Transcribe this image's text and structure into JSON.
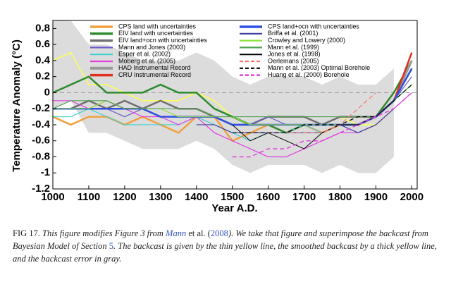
{
  "chart_data": {
    "type": "line",
    "xlabel": "Year A.D.",
    "ylabel": "Temperature Anomaly (°C)",
    "x": [
      1000,
      1050,
      1100,
      1150,
      1200,
      1250,
      1300,
      1350,
      1400,
      1450,
      1500,
      1550,
      1600,
      1650,
      1700,
      1750,
      1800,
      1850,
      1900,
      1950,
      2000
    ],
    "xlim": [
      1000,
      2015
    ],
    "xticks": [
      1000,
      1100,
      1200,
      1300,
      1400,
      1500,
      1600,
      1700,
      1800,
      1900,
      2000
    ],
    "ylim": [
      -1.2,
      0.9
    ],
    "yticks": [
      0.8,
      0.6,
      0.4,
      0.2,
      0,
      -0.2,
      -0.4,
      -0.6,
      -0.8,
      -1,
      -1.2
    ],
    "zero_line": true,
    "band": {
      "color": "#dcdcdc",
      "upper": [
        0.9,
        0.9,
        0.6,
        0.6,
        0.5,
        0.4,
        0.4,
        0.4,
        0.5,
        0.4,
        0.2,
        0.1,
        0.2,
        0.2,
        0.2,
        0.1,
        0.2,
        0.1,
        0.1,
        0.3,
        null
      ],
      "lower": [
        -0.2,
        -0.1,
        -0.5,
        -0.5,
        -0.6,
        -0.7,
        -0.7,
        -0.7,
        -0.6,
        -0.7,
        -0.9,
        -1.0,
        -0.9,
        -0.9,
        -0.9,
        -1.0,
        -0.9,
        -1.0,
        -1.0,
        -0.8,
        null
      ]
    },
    "series": [
      {
        "color": "#ffff55",
        "width": 1.5,
        "values": [
          0.4,
          0.5,
          0.1,
          0.1,
          0.0,
          -0.1,
          -0.1,
          -0.1,
          0.0,
          -0.1,
          -0.3,
          -0.4,
          -0.3,
          -0.3,
          -0.3,
          -0.4,
          -0.3,
          -0.4,
          -0.4,
          -0.2,
          null
        ]
      },
      {
        "name": "CPS land with uncertainties",
        "color": "#f0a040",
        "width": 2.5,
        "values": [
          -0.3,
          -0.4,
          -0.3,
          -0.3,
          -0.4,
          -0.3,
          -0.4,
          -0.5,
          -0.3,
          -0.3,
          -0.6,
          -0.5,
          -0.4,
          -0.5,
          -0.4,
          -0.5,
          -0.4,
          -0.4,
          -0.3,
          0.0,
          0.4
        ]
      },
      {
        "name": "EIV land with uncertainties",
        "color": "#2e8b2e",
        "width": 2.5,
        "values": [
          0.0,
          0.1,
          0.2,
          0.0,
          0.0,
          0.0,
          0.1,
          0.0,
          0.0,
          -0.2,
          -0.3,
          -0.4,
          -0.4,
          -0.5,
          -0.4,
          -0.4,
          -0.4,
          -0.4,
          -0.3,
          0.0,
          0.4
        ]
      },
      {
        "name": "EIV land+ocn with uncertainties",
        "color": "#707070",
        "width": 2.5,
        "values": [
          -0.2,
          -0.2,
          -0.1,
          -0.2,
          -0.1,
          -0.2,
          -0.1,
          -0.2,
          -0.2,
          -0.3,
          -0.4,
          -0.4,
          -0.3,
          -0.3,
          -0.3,
          -0.4,
          -0.3,
          -0.3,
          -0.3,
          -0.1,
          0.3
        ]
      },
      {
        "name": "Mann and Jones (2003)",
        "color": "#6a5acd",
        "width": 1.2,
        "values": [
          -0.2,
          -0.2,
          -0.2,
          -0.2,
          -0.3,
          -0.2,
          -0.3,
          -0.3,
          -0.3,
          -0.3,
          -0.4,
          -0.4,
          -0.3,
          -0.4,
          -0.4,
          -0.4,
          -0.4,
          -0.4,
          -0.3,
          -0.1,
          0.2
        ]
      },
      {
        "name": "Esper et al. (2002)",
        "color": "#40d0d0",
        "width": 1.2,
        "values": [
          -0.3,
          -0.3,
          -0.2,
          -0.3,
          -0.4,
          -0.4,
          -0.4,
          -0.4,
          -0.3,
          -0.4,
          -0.5,
          -0.6,
          -0.5,
          -0.5,
          -0.4,
          -0.5,
          -0.4,
          -0.4,
          -0.3,
          -0.1,
          0.1
        ]
      },
      {
        "name": "Moberg et al. (2005)",
        "color": "#e040e0",
        "width": 1.2,
        "values": [
          -0.1,
          -0.1,
          -0.2,
          -0.1,
          -0.2,
          -0.3,
          -0.3,
          -0.4,
          -0.3,
          -0.5,
          -0.6,
          -0.7,
          -0.8,
          -0.8,
          -0.7,
          -0.6,
          -0.5,
          -0.5,
          -0.4,
          -0.2,
          0.0
        ]
      },
      {
        "name": "HAD Instrumental Record",
        "color": "#9a9a9a",
        "width": 3,
        "values": [
          null,
          null,
          null,
          null,
          null,
          null,
          null,
          null,
          null,
          null,
          null,
          null,
          null,
          null,
          null,
          null,
          null,
          -0.4,
          -0.3,
          -0.1,
          0.4
        ]
      },
      {
        "name": "CRU Instrumental Record",
        "color": "#e03020",
        "width": 2.5,
        "values": [
          null,
          null,
          null,
          null,
          null,
          null,
          null,
          null,
          null,
          null,
          null,
          null,
          null,
          null,
          null,
          null,
          null,
          -0.4,
          -0.3,
          -0.1,
          0.5
        ]
      },
      {
        "name": "CPS land+ocn with uncertainties",
        "color": "#3050e0",
        "width": 2.5,
        "values": [
          -0.2,
          -0.2,
          -0.2,
          -0.2,
          -0.2,
          -0.2,
          -0.3,
          -0.3,
          -0.3,
          -0.3,
          -0.4,
          -0.4,
          -0.4,
          -0.4,
          -0.4,
          -0.4,
          -0.4,
          -0.4,
          -0.3,
          -0.1,
          0.3
        ]
      },
      {
        "name": "Briffa et al. (2001)",
        "color": "#4040a0",
        "width": 1.2,
        "values": [
          null,
          null,
          null,
          null,
          null,
          null,
          null,
          null,
          -0.4,
          -0.4,
          -0.5,
          -0.5,
          -0.5,
          -0.5,
          -0.5,
          -0.5,
          -0.4,
          -0.5,
          -0.4,
          -0.2,
          null
        ]
      },
      {
        "name": "Crowley and Lowery (2000)",
        "color": "#90e040",
        "width": 1.2,
        "values": [
          -0.2,
          -0.2,
          -0.2,
          -0.1,
          -0.2,
          -0.2,
          -0.2,
          -0.3,
          -0.3,
          -0.3,
          -0.3,
          -0.4,
          -0.4,
          -0.4,
          -0.4,
          -0.4,
          -0.4,
          -0.4,
          -0.3,
          -0.1,
          0.1
        ]
      },
      {
        "name": "Mann et al. (1999)",
        "color": "#50a050",
        "width": 1.2,
        "values": [
          -0.2,
          -0.1,
          -0.1,
          -0.1,
          -0.2,
          -0.2,
          -0.2,
          -0.2,
          -0.2,
          -0.3,
          -0.3,
          -0.3,
          -0.3,
          -0.3,
          -0.3,
          -0.3,
          -0.3,
          -0.3,
          -0.3,
          -0.1,
          0.1
        ]
      },
      {
        "name": "Jones et al. (1998)",
        "color": "#000000",
        "width": 1,
        "values": [
          null,
          null,
          null,
          null,
          null,
          null,
          null,
          null,
          null,
          null,
          -0.4,
          -0.6,
          -0.5,
          -0.6,
          -0.7,
          -0.5,
          -0.4,
          -0.4,
          -0.3,
          -0.1,
          null
        ]
      },
      {
        "name": "Oerlemans (2005)",
        "color": "#ff7070",
        "width": 1.2,
        "dash": true,
        "values": [
          null,
          null,
          null,
          null,
          null,
          null,
          null,
          null,
          null,
          null,
          null,
          null,
          -0.5,
          -0.5,
          -0.5,
          -0.5,
          -0.4,
          -0.2,
          0.0,
          null,
          null
        ]
      },
      {
        "name": "Mann et al. (2003) Optimal Borehole",
        "color": "#000000",
        "width": 1.2,
        "dash": true,
        "values": [
          null,
          null,
          null,
          null,
          null,
          null,
          null,
          null,
          null,
          null,
          -0.5,
          -0.5,
          -0.5,
          -0.5,
          -0.4,
          -0.4,
          -0.4,
          -0.3,
          -0.3,
          -0.1,
          0.1
        ]
      },
      {
        "name": "Huang et al. (2000) Borehole",
        "color": "#e040e0",
        "width": 1.5,
        "dash": true,
        "values": [
          null,
          null,
          null,
          null,
          null,
          null,
          null,
          null,
          null,
          null,
          -0.8,
          -0.8,
          -0.7,
          -0.7,
          -0.6,
          -0.6,
          -0.5,
          -0.4,
          -0.3,
          -0.2,
          0.0
        ]
      }
    ]
  },
  "caption": {
    "label": "FIG 17.",
    "parts": [
      "This figure modifies Figure 3 from ",
      "Mann",
      " et al. (",
      "2008",
      "). We take that figure and superimpose the backcast from Bayesian Model of Section ",
      "5",
      ". The backcast is given by the thin yellow line, the smoothed backcast by a thick yellow line, and the backcast error in gray."
    ]
  }
}
